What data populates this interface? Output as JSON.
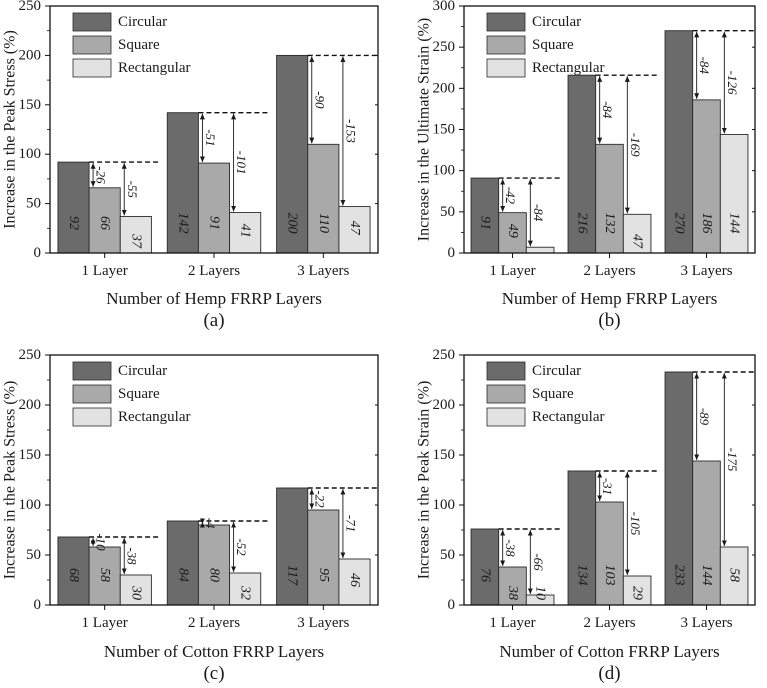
{
  "figure": {
    "colors": {
      "circular": "#6b6b6b",
      "square": "#a9a9a9",
      "rectangular": "#e2e2e2",
      "axis": "#111111"
    }
  },
  "chart_data": [
    {
      "type": "bar",
      "panel_label": "(a)",
      "title": "",
      "xlabel": "Number of Hemp FRRP Layers",
      "ylabel": "Increase in the Peak Stress (%)",
      "categories": [
        "1 Layer",
        "2 Layers",
        "3 Layers"
      ],
      "ylim": [
        0,
        250
      ],
      "yticks": [
        0,
        50,
        100,
        150,
        200,
        250
      ],
      "series": [
        {
          "name": "Circular",
          "values": [
            92,
            142,
            200
          ],
          "labels": [
            "92",
            "142",
            "200"
          ]
        },
        {
          "name": "Square",
          "values": [
            66,
            91,
            110
          ],
          "labels": [
            "66",
            "91",
            "110"
          ]
        },
        {
          "name": "Rectangular",
          "values": [
            37,
            41,
            47
          ],
          "labels": [
            "37",
            "41",
            "47"
          ]
        }
      ],
      "differences": {
        "square": [
          "-26",
          "-51",
          "-90"
        ],
        "rectangular": [
          "-55",
          "-101",
          "-153"
        ]
      },
      "legend": "top-left"
    },
    {
      "type": "bar",
      "panel_label": "(b)",
      "title": "",
      "xlabel": "Number of Hemp FRRP Layers",
      "ylabel": "Increase in the Ultimate Strain (%)",
      "categories": [
        "1 Layer",
        "2 Layers",
        "3 Layers"
      ],
      "ylim": [
        0,
        300
      ],
      "yticks": [
        0,
        50,
        100,
        150,
        200,
        250,
        300
      ],
      "series": [
        {
          "name": "Circular",
          "values": [
            91,
            216,
            270
          ],
          "labels": [
            "91",
            "216",
            "270"
          ]
        },
        {
          "name": "Square",
          "values": [
            49,
            132,
            186
          ],
          "labels": [
            "49",
            "132",
            "186"
          ]
        },
        {
          "name": "Rectangular",
          "values": [
            7,
            47,
            144
          ],
          "labels": [
            "",
            "47",
            "144"
          ]
        }
      ],
      "differences": {
        "square": [
          "-42",
          "-84",
          "-84"
        ],
        "rectangular": [
          "-84",
          "-169",
          "-126"
        ]
      },
      "legend": "top-left"
    },
    {
      "type": "bar",
      "panel_label": "(c)",
      "title": "",
      "xlabel": "Number of Cotton FRRP Layers",
      "ylabel": "Increase in the Peak Stress (%)",
      "categories": [
        "1 Layer",
        "2 Layers",
        "3 Layers"
      ],
      "ylim": [
        0,
        250
      ],
      "yticks": [
        0,
        50,
        100,
        150,
        200,
        250
      ],
      "series": [
        {
          "name": "Circular",
          "values": [
            68,
            84,
            117
          ],
          "labels": [
            "68",
            "84",
            "117"
          ]
        },
        {
          "name": "Square",
          "values": [
            58,
            80,
            95
          ],
          "labels": [
            "58",
            "80",
            "95"
          ]
        },
        {
          "name": "Rectangular",
          "values": [
            30,
            32,
            46
          ],
          "labels": [
            "30",
            "32",
            "46"
          ]
        }
      ],
      "differences": {
        "square": [
          "-10",
          "-4",
          "-22"
        ],
        "rectangular": [
          "-38",
          "-52",
          "-71"
        ]
      },
      "legend": "top-left"
    },
    {
      "type": "bar",
      "panel_label": "(d)",
      "title": "",
      "xlabel": "Number of Cotton FRRP Layers",
      "ylabel": "Increase in the Peak Strain (%)",
      "categories": [
        "1 Layer",
        "2 Layers",
        "3 Layers"
      ],
      "ylim": [
        0,
        250
      ],
      "yticks": [
        0,
        50,
        100,
        150,
        200,
        250
      ],
      "series": [
        {
          "name": "Circular",
          "values": [
            76,
            134,
            233
          ],
          "labels": [
            "76",
            "134",
            "233"
          ]
        },
        {
          "name": "Square",
          "values": [
            38,
            103,
            144
          ],
          "labels": [
            "38",
            "103",
            "144"
          ]
        },
        {
          "name": "Rectangular",
          "values": [
            10,
            29,
            58
          ],
          "labels": [
            "10",
            "29",
            "58"
          ]
        }
      ],
      "differences": {
        "square": [
          "-38",
          "-31",
          "-89"
        ],
        "rectangular": [
          "-66",
          "-105",
          "-175"
        ]
      },
      "legend": "top-left"
    }
  ]
}
